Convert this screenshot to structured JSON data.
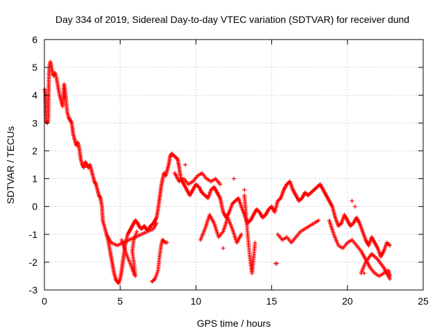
{
  "chart_data": {
    "type": "scatter",
    "title": "Day 334 of 2019, Sidereal Day-to-day VTEC variation (SDTVAR) for receiver dund",
    "xlabel": "GPS time / hours",
    "ylabel": "SDTVAR / TECUs",
    "xlim": [
      0,
      25
    ],
    "ylim": [
      -3,
      6
    ],
    "xticks": [
      0,
      5,
      10,
      15,
      20,
      25
    ],
    "yticks": [
      -3,
      -2,
      -1,
      0,
      1,
      2,
      3,
      4,
      5,
      6
    ],
    "grid": true,
    "marker": "+",
    "series": [
      {
        "name": "SDTVAR",
        "color": "#ff0000",
        "trace": [
          [
            0.0,
            4.2
          ],
          [
            0.05,
            4.2
          ],
          [
            0.1,
            3.05
          ],
          [
            0.15,
            3.05
          ],
          [
            0.2,
            3.0
          ],
          [
            0.25,
            3.1
          ],
          [
            0.3,
            4.7
          ],
          [
            0.35,
            5.1
          ],
          [
            0.4,
            5.2
          ],
          [
            0.5,
            4.9
          ],
          [
            0.6,
            4.7
          ],
          [
            0.7,
            4.8
          ],
          [
            0.8,
            4.6
          ],
          [
            0.9,
            4.3
          ],
          [
            1.0,
            4.0
          ],
          [
            1.1,
            3.8
          ],
          [
            1.2,
            3.6
          ],
          [
            1.3,
            4.4
          ],
          [
            1.4,
            4.0
          ],
          [
            1.5,
            3.4
          ],
          [
            1.6,
            3.2
          ],
          [
            1.7,
            3.1
          ],
          [
            1.8,
            3.0
          ],
          [
            1.9,
            2.6
          ],
          [
            2.0,
            2.4
          ],
          [
            2.1,
            2.2
          ],
          [
            2.2,
            2.3
          ],
          [
            2.3,
            2.1
          ],
          [
            2.4,
            1.7
          ],
          [
            2.5,
            1.5
          ],
          [
            2.6,
            1.4
          ],
          [
            2.7,
            1.6
          ],
          [
            2.8,
            1.5
          ],
          [
            2.9,
            1.4
          ],
          [
            3.0,
            1.5
          ],
          [
            3.1,
            1.3
          ],
          [
            3.2,
            1.1
          ],
          [
            3.3,
            0.9
          ],
          [
            3.4,
            0.8
          ],
          [
            3.5,
            0.6
          ],
          [
            3.6,
            0.4
          ],
          [
            3.7,
            0.3
          ],
          [
            3.8,
            0.0
          ],
          [
            3.85,
            -0.5
          ],
          [
            3.9,
            -0.6
          ],
          [
            4.0,
            -0.8
          ],
          [
            4.1,
            -1.0
          ],
          [
            4.2,
            -1.2
          ],
          [
            4.3,
            -1.5
          ],
          [
            4.4,
            -1.8
          ],
          [
            4.5,
            -2.1
          ],
          [
            4.6,
            -2.4
          ],
          [
            4.7,
            -2.6
          ],
          [
            4.8,
            -2.7
          ],
          [
            4.9,
            -2.75
          ],
          [
            5.0,
            -2.6
          ],
          [
            5.1,
            -2.3
          ],
          [
            5.2,
            -1.9
          ],
          [
            5.3,
            -1.5
          ],
          [
            5.4,
            -1.2
          ],
          [
            5.5,
            -1.0
          ],
          [
            5.6,
            -0.9
          ],
          [
            5.7,
            -0.8
          ],
          [
            5.8,
            -0.7
          ],
          [
            5.9,
            -0.6
          ],
          [
            6.0,
            -0.5
          ],
          [
            6.1,
            -0.55
          ],
          [
            6.2,
            -0.65
          ],
          [
            6.3,
            -0.75
          ],
          [
            6.4,
            -0.8
          ],
          [
            6.5,
            -0.75
          ],
          [
            6.6,
            -0.7
          ],
          [
            6.7,
            -0.8
          ],
          [
            6.8,
            -0.85
          ],
          [
            6.9,
            -0.8
          ],
          [
            7.0,
            -0.7
          ],
          [
            7.1,
            -0.65
          ],
          [
            7.2,
            -0.6
          ],
          [
            7.3,
            -0.5
          ],
          [
            7.4,
            -0.4
          ],
          [
            7.5,
            -0.1
          ],
          [
            7.6,
            0.3
          ],
          [
            7.7,
            0.7
          ],
          [
            7.8,
            1.0
          ],
          [
            7.9,
            1.2
          ],
          [
            8.0,
            1.1
          ],
          [
            8.1,
            1.3
          ],
          [
            8.2,
            1.5
          ],
          [
            8.3,
            1.8
          ],
          [
            8.4,
            1.9
          ],
          [
            8.5,
            1.85
          ],
          [
            8.6,
            1.8
          ],
          [
            8.7,
            1.75
          ],
          [
            8.8,
            1.7
          ],
          [
            8.9,
            1.4
          ],
          [
            9.0,
            1.0
          ],
          [
            9.2,
            0.8
          ],
          [
            9.4,
            0.6
          ],
          [
            9.6,
            0.4
          ],
          [
            9.8,
            0.6
          ],
          [
            10.0,
            0.8
          ],
          [
            10.2,
            0.7
          ],
          [
            10.4,
            0.5
          ],
          [
            10.6,
            0.4
          ],
          [
            10.8,
            0.3
          ],
          [
            11.0,
            0.6
          ],
          [
            11.2,
            0.7
          ],
          [
            11.4,
            0.5
          ],
          [
            11.6,
            0.3
          ],
          [
            11.8,
            -0.2
          ],
          [
            12.0,
            -0.4
          ],
          [
            12.2,
            -0.2
          ],
          [
            12.4,
            0.1
          ],
          [
            12.6,
            0.2
          ],
          [
            12.8,
            0.3
          ],
          [
            13.0,
            0.0
          ],
          [
            13.2,
            -0.3
          ],
          [
            13.4,
            -0.6
          ],
          [
            13.6,
            -0.5
          ],
          [
            13.8,
            -0.3
          ],
          [
            14.0,
            -0.1
          ],
          [
            14.2,
            -0.2
          ],
          [
            14.4,
            -0.4
          ],
          [
            14.6,
            -0.3
          ],
          [
            14.8,
            -0.1
          ],
          [
            15.0,
            0.0
          ],
          [
            15.2,
            -0.2
          ],
          [
            15.4,
            0.2
          ],
          [
            15.6,
            0.3
          ],
          [
            15.8,
            0.6
          ],
          [
            16.0,
            0.8
          ],
          [
            16.2,
            0.9
          ],
          [
            16.4,
            0.6
          ],
          [
            16.6,
            0.4
          ],
          [
            16.8,
            0.2
          ],
          [
            17.0,
            0.3
          ],
          [
            17.2,
            0.5
          ],
          [
            17.4,
            0.4
          ],
          [
            17.6,
            0.5
          ],
          [
            17.8,
            0.6
          ],
          [
            18.0,
            0.7
          ],
          [
            18.2,
            0.8
          ],
          [
            18.4,
            0.6
          ],
          [
            18.6,
            0.4
          ],
          [
            18.8,
            0.2
          ],
          [
            19.0,
            0.0
          ],
          [
            19.2,
            -0.4
          ],
          [
            19.4,
            -0.7
          ],
          [
            19.6,
            -0.6
          ],
          [
            19.8,
            -0.3
          ],
          [
            20.0,
            -0.5
          ],
          [
            20.2,
            -0.7
          ],
          [
            20.4,
            -0.6
          ],
          [
            20.6,
            -0.4
          ],
          [
            20.8,
            -0.6
          ],
          [
            21.0,
            -0.9
          ],
          [
            21.2,
            -1.2
          ],
          [
            21.4,
            -1.4
          ],
          [
            21.6,
            -1.1
          ],
          [
            21.8,
            -1.3
          ],
          [
            22.0,
            -1.5
          ],
          [
            22.2,
            -1.8
          ],
          [
            22.4,
            -1.6
          ],
          [
            22.6,
            -1.3
          ],
          [
            22.8,
            -1.4
          ]
        ],
        "branches": [
          [
            [
              4.1,
              -1.0
            ],
            [
              4.4,
              -1.3
            ],
            [
              4.8,
              -1.4
            ],
            [
              5.2,
              -1.3
            ],
            [
              5.6,
              -1.2
            ],
            [
              6.0,
              -1.1
            ],
            [
              6.4,
              -1.0
            ],
            [
              6.8,
              -0.9
            ],
            [
              7.2,
              -0.8
            ],
            [
              7.4,
              -0.6
            ]
          ],
          [
            [
              5.1,
              -1.2
            ],
            [
              5.4,
              -1.7
            ],
            [
              5.7,
              -2.1
            ],
            [
              5.9,
              -2.4
            ],
            [
              6.0,
              -2.5
            ],
            [
              5.9,
              -2.0
            ],
            [
              5.8,
              -1.6
            ],
            [
              5.9,
              -1.2
            ],
            [
              6.1,
              -0.9
            ]
          ],
          [
            [
              7.1,
              -2.7
            ],
            [
              7.3,
              -2.6
            ],
            [
              7.5,
              -2.3
            ],
            [
              7.6,
              -1.8
            ],
            [
              7.7,
              -1.4
            ],
            [
              7.8,
              -1.2
            ],
            [
              7.9,
              -1.25
            ],
            [
              8.0,
              -1.3
            ],
            [
              8.1,
              -1.3
            ]
          ],
          [
            [
              8.6,
              1.2
            ],
            [
              8.9,
              0.9
            ],
            [
              9.2,
              1.0
            ],
            [
              9.5,
              0.8
            ],
            [
              9.8,
              0.9
            ],
            [
              10.1,
              1.1
            ],
            [
              10.4,
              1.2
            ],
            [
              10.7,
              1.0
            ],
            [
              11.0,
              0.9
            ],
            [
              11.3,
              1.0
            ],
            [
              11.6,
              0.8
            ]
          ],
          [
            [
              10.3,
              -1.2
            ],
            [
              10.6,
              -0.8
            ],
            [
              10.9,
              -0.3
            ],
            [
              11.2,
              -0.6
            ],
            [
              11.5,
              -1.1
            ],
            [
              11.8,
              -0.9
            ],
            [
              12.1,
              -0.4
            ],
            [
              12.4,
              -0.8
            ],
            [
              12.7,
              -1.3
            ],
            [
              13.0,
              -1.0
            ]
          ],
          [
            [
              13.2,
              0.4
            ],
            [
              13.4,
              -0.9
            ],
            [
              13.5,
              -1.5
            ],
            [
              13.6,
              -2.0
            ],
            [
              13.7,
              -2.4
            ],
            [
              13.8,
              -1.9
            ],
            [
              13.9,
              -1.3
            ]
          ],
          [
            [
              15.4,
              -1.0
            ],
            [
              15.7,
              -1.2
            ],
            [
              16.0,
              -1.1
            ],
            [
              16.3,
              -1.3
            ],
            [
              16.6,
              -1.1
            ],
            [
              16.9,
              -0.9
            ],
            [
              17.2,
              -0.8
            ],
            [
              17.5,
              -0.7
            ],
            [
              17.8,
              -0.6
            ],
            [
              18.1,
              -0.5
            ]
          ],
          [
            [
              18.8,
              -0.5
            ],
            [
              19.1,
              -1.0
            ],
            [
              19.4,
              -1.4
            ],
            [
              19.7,
              -1.5
            ],
            [
              20.0,
              -1.3
            ],
            [
              20.3,
              -1.2
            ],
            [
              20.6,
              -1.4
            ],
            [
              20.9,
              -1.6
            ],
            [
              21.2,
              -1.9
            ],
            [
              21.5,
              -2.2
            ],
            [
              21.8,
              -2.4
            ],
            [
              22.1,
              -2.5
            ],
            [
              22.4,
              -2.4
            ],
            [
              22.7,
              -2.3
            ],
            [
              22.8,
              -2.5
            ]
          ],
          [
            [
              20.9,
              -2.4
            ],
            [
              21.2,
              -2.0
            ],
            [
              21.6,
              -1.7
            ],
            [
              22.0,
              -1.9
            ],
            [
              22.4,
              -2.2
            ],
            [
              22.8,
              -2.6
            ]
          ]
        ],
        "isolated": [
          [
            9.3,
            1.5
          ],
          [
            11.8,
            -1.5
          ],
          [
            15.25,
            -2.05
          ],
          [
            15.35,
            -2.05
          ],
          [
            20.3,
            0.2
          ],
          [
            20.5,
            0.0
          ],
          [
            21.1,
            -2.4
          ],
          [
            12.5,
            1.0
          ],
          [
            13.2,
            0.6
          ]
        ]
      }
    ]
  }
}
